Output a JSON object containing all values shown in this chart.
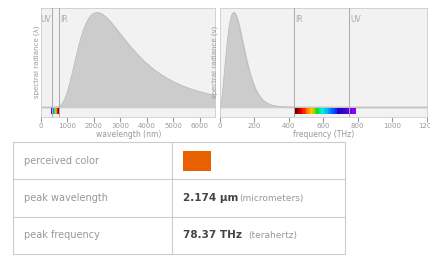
{
  "peak_wavelength_nm": 2174,
  "peak_frequency_THz": 78.37,
  "peak_wavelength_display": "2.174",
  "peak_frequency_display": "78.37",
  "color_box": "#e86000",
  "uv_boundary_nm": 400,
  "ir_boundary_nm": 700,
  "uv_boundary_THz": 750,
  "ir_boundary_THz": 430,
  "visible_spectrum": [
    [
      380,
      "#8b00ff"
    ],
    [
      390,
      "#7700ee"
    ],
    [
      400,
      "#5500dd"
    ],
    [
      410,
      "#4400cc"
    ],
    [
      420,
      "#3300bb"
    ],
    [
      430,
      "#2200cc"
    ],
    [
      440,
      "#0033ff"
    ],
    [
      450,
      "#0055ff"
    ],
    [
      460,
      "#0077ff"
    ],
    [
      470,
      "#0099ff"
    ],
    [
      480,
      "#00bbff"
    ],
    [
      490,
      "#00ddee"
    ],
    [
      500,
      "#00eedd"
    ],
    [
      510,
      "#00ee99"
    ],
    [
      520,
      "#00dd55"
    ],
    [
      530,
      "#33cc00"
    ],
    [
      540,
      "#88cc00"
    ],
    [
      550,
      "#cccc00"
    ],
    [
      560,
      "#ffcc00"
    ],
    [
      570,
      "#ffaa00"
    ],
    [
      580,
      "#ff8800"
    ],
    [
      590,
      "#ff6600"
    ],
    [
      600,
      "#ff4400"
    ],
    [
      610,
      "#ff2200"
    ],
    [
      620,
      "#ff1100"
    ],
    [
      630,
      "#ee0000"
    ],
    [
      640,
      "#cc0000"
    ],
    [
      650,
      "#aa0000"
    ],
    [
      660,
      "#880000"
    ],
    [
      670,
      "#770000"
    ],
    [
      680,
      "#660000"
    ],
    [
      690,
      "#550000"
    ],
    [
      700,
      "#440000"
    ]
  ],
  "background_color": "#ffffff",
  "panel_bg": "#f2f2f2",
  "axis_color": "#cccccc",
  "text_color": "#999999",
  "table_line_color": "#cccccc",
  "curve_fill": "#cccccc",
  "curve_line": "#bbbbbb"
}
